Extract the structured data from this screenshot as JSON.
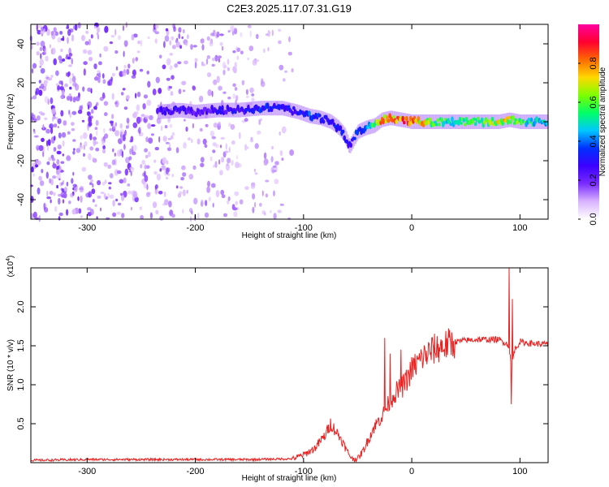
{
  "figure_title": "C2E3.2025.117.07.31.G19",
  "chart_data": [
    {
      "type": "heatmap",
      "panel": "spectrogram",
      "xlabel": "Height of straight line (km)",
      "ylabel": "Frequency (Hz)",
      "xlim": [
        -352,
        126
      ],
      "ylim": [
        -50,
        50
      ],
      "x_ticks": [
        -300,
        -200,
        -100,
        0,
        100
      ],
      "y_ticks": [
        -40,
        -20,
        0,
        20,
        40
      ],
      "colorbar": {
        "label": "Normalized spectral amplitude",
        "range": [
          0.0,
          1.0
        ],
        "ticks": [
          0.0,
          0.2,
          0.4,
          0.6,
          0.8
        ],
        "tick_labels": [
          "0.0",
          "0.2",
          "0.4",
          "0.6",
          "0.8"
        ],
        "colormap": [
          "#ffffff",
          "#d9b3ff",
          "#7a2cff",
          "#3b00ff",
          "#0030ff",
          "#00c8ff",
          "#00ff66",
          "#7dff00",
          "#ffd800",
          "#ff6a00",
          "#ff0030",
          "#ff00a0"
        ]
      },
      "ridge": {
        "height_km": [
          -235,
          -215,
          -200,
          -180,
          -160,
          -140,
          -120,
          -105,
          -95,
          -85,
          -75,
          -68,
          -62,
          -58,
          -50,
          -42,
          -35,
          -28,
          -20,
          -10,
          0,
          20,
          40,
          60,
          80,
          90,
          100,
          126
        ],
        "frequency_hz": [
          5,
          6,
          5,
          6,
          6,
          7,
          7,
          5,
          3,
          2,
          0,
          -3,
          -7,
          -13,
          -5,
          -3,
          -2,
          1,
          2,
          1,
          0,
          0,
          0,
          0,
          0,
          1,
          0,
          0
        ],
        "amplitude": [
          0.25,
          0.3,
          0.22,
          0.28,
          0.3,
          0.35,
          0.33,
          0.3,
          0.38,
          0.35,
          0.3,
          0.35,
          0.32,
          0.3,
          0.35,
          0.45,
          0.6,
          0.8,
          0.85,
          0.85,
          0.9,
          0.6,
          0.55,
          0.6,
          0.7,
          0.75,
          0.6,
          0.5
        ]
      },
      "noise_region_km": [
        -352,
        -110
      ]
    },
    {
      "type": "line",
      "panel": "snr",
      "xlabel": "Height of straight line (km)",
      "ylabel": "SNR (10 * v/v)",
      "y_scale_label": "(x10",
      "y_scale_exponent": "4",
      "xlim": [
        -352,
        126
      ],
      "ylim": [
        0,
        2.5
      ],
      "x_ticks": [
        -300,
        -200,
        -100,
        0,
        100
      ],
      "y_ticks": [
        0.5,
        1.0,
        1.5,
        2.0
      ],
      "y_tick_labels": [
        "0.5",
        "1.0",
        "1.5",
        "2.0"
      ],
      "series": [
        {
          "color": "#ee2020",
          "x": [
            -352,
            -300,
            -250,
            -200,
            -150,
            -110,
            -100,
            -90,
            -80,
            -75,
            -70,
            -65,
            -60,
            -55,
            -50,
            -45,
            -40,
            -35,
            -30,
            -25,
            -20,
            -15,
            -10,
            -5,
            0,
            10,
            20,
            30,
            40,
            50,
            60,
            70,
            80,
            85,
            90,
            92,
            95,
            100,
            110,
            126
          ],
          "y": [
            0.03,
            0.04,
            0.04,
            0.04,
            0.04,
            0.05,
            0.1,
            0.18,
            0.35,
            0.5,
            0.4,
            0.3,
            0.15,
            0.05,
            0.05,
            0.15,
            0.3,
            0.45,
            0.55,
            0.65,
            0.8,
            0.9,
            0.95,
            1.05,
            1.2,
            1.35,
            1.45,
            1.5,
            1.55,
            1.57,
            1.58,
            1.58,
            1.58,
            1.55,
            1.5,
            1.2,
            1.45,
            1.55,
            1.53,
            1.52
          ],
          "spikes": [
            {
              "x": -25,
              "y": 1.6
            },
            {
              "x": -20,
              "y": 1.4
            },
            {
              "x": -10,
              "y": 1.45
            },
            {
              "x": 90,
              "y": 2.5
            },
            {
              "x": 93,
              "y": 2.1
            },
            {
              "x": 92,
              "y": 0.75
            }
          ]
        }
      ]
    }
  ]
}
